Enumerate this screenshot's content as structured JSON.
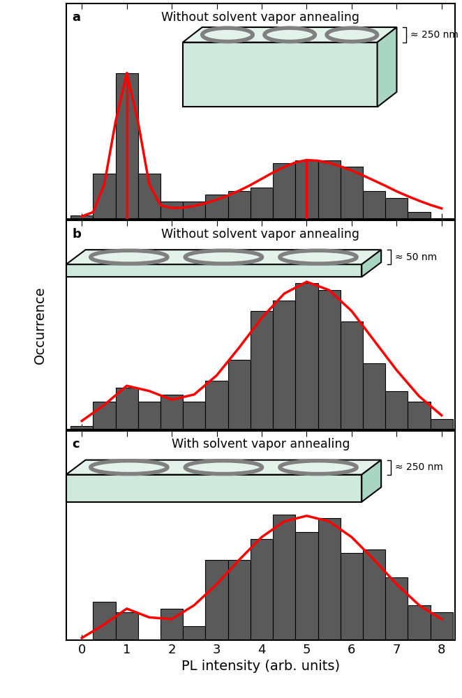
{
  "chart_data": [
    {
      "type": "histogram",
      "panel_label": "a",
      "title": "Without solvent vapor annealing",
      "annotation": "≈ 250 nm",
      "tick_labels": false,
      "bins": [
        -0.25,
        0.25,
        0.75,
        1.25,
        1.75,
        2.25,
        2.75,
        3.25,
        3.75,
        4.25,
        4.75,
        5.25,
        5.75,
        6.25,
        6.75,
        7.25,
        7.75,
        8.25
      ],
      "counts": [
        1,
        13,
        42,
        13,
        5,
        5,
        7,
        8,
        9,
        16,
        17,
        17,
        15,
        8,
        6,
        2,
        0
      ],
      "color": "#5a5a5a",
      "fit": {
        "color": "#ff0000",
        "x": [
          0,
          0.25,
          0.5,
          0.75,
          1,
          1.25,
          1.5,
          1.75,
          2,
          2.25,
          2.5,
          2.75,
          3,
          3.25,
          3.5,
          3.75,
          4,
          4.25,
          4.5,
          4.75,
          5,
          5.25,
          5.5,
          5.75,
          6,
          6.25,
          6.5,
          6.75,
          7,
          7.25,
          7.5,
          7.75,
          8
        ],
        "values": [
          0.8,
          2,
          10,
          28,
          42,
          28,
          10,
          4,
          3.2,
          3.3,
          3.8,
          4.6,
          5.6,
          6.8,
          8.2,
          9.8,
          11.6,
          13.4,
          15,
          16.3,
          17,
          16.8,
          16.2,
          15.2,
          14,
          12.6,
          11.1,
          9.6,
          8,
          6.6,
          5.3,
          4.1,
          3.1
        ]
      },
      "peak_lines": [
        1,
        5
      ],
      "xlim": [
        -0.35,
        8.3
      ],
      "xticks": [
        0,
        1,
        2,
        3,
        4,
        5,
        6,
        7,
        8
      ],
      "ylim": [
        0,
        62
      ]
    },
    {
      "type": "histogram",
      "panel_label": "b",
      "title": "Without solvent vapor annealing",
      "annotation": "≈ 50 nm",
      "tick_labels": false,
      "ylabel": "Occurrence",
      "bins": [
        -0.25,
        0.25,
        0.75,
        1.25,
        1.75,
        2.25,
        2.75,
        3.25,
        3.75,
        4.25,
        4.75,
        5.25,
        5.75,
        6.25,
        6.75,
        7.25,
        7.75,
        8.25
      ],
      "counts": [
        1,
        8,
        12,
        8,
        10,
        8,
        14,
        20,
        34,
        37,
        42,
        40,
        31,
        19,
        11,
        8,
        3
      ],
      "color": "#5a5a5a",
      "fit": {
        "color": "#ff0000",
        "x": [
          0,
          0.5,
          1,
          1.5,
          2,
          2.5,
          3,
          3.5,
          4,
          4.5,
          5,
          5.5,
          6,
          6.5,
          7,
          7.5,
          8
        ],
        "values": [
          2.4,
          7,
          12.5,
          11,
          8.5,
          10,
          15.5,
          23.5,
          32,
          39,
          42.4,
          40,
          34,
          25.5,
          17,
          9.5,
          4
        ]
      },
      "xlim": [
        -0.35,
        8.3
      ],
      "xticks": [
        0,
        1,
        2,
        3,
        4,
        5,
        6,
        7,
        8
      ],
      "ylim": [
        0,
        60
      ]
    },
    {
      "type": "histogram",
      "panel_label": "c",
      "title": "With solvent vapor annealing",
      "annotation": "≈ 250 nm",
      "tick_labels": "x",
      "xlabel": "PL intensity (arb. units)",
      "bins": [
        -0.25,
        0.25,
        0.75,
        1.25,
        1.75,
        2.25,
        2.75,
        3.25,
        3.75,
        4.25,
        4.75,
        5.25,
        5.75,
        6.25,
        6.75,
        7.25,
        7.75,
        8.25
      ],
      "counts": [
        0,
        11,
        8,
        0,
        9,
        4,
        23,
        23,
        29,
        36,
        31,
        35,
        25,
        26,
        18,
        10,
        8
      ],
      "color": "#5a5a5a",
      "fit": {
        "color": "#ff0000",
        "x": [
          0,
          0.5,
          1,
          1.5,
          2,
          2.5,
          3,
          3.5,
          4,
          4.5,
          5,
          5.5,
          6,
          6.5,
          7,
          7.5,
          8
        ],
        "values": [
          0.6,
          4.5,
          9,
          6.5,
          6,
          10,
          16,
          23,
          29.5,
          34,
          35.6,
          34,
          29.5,
          23,
          16,
          10,
          6
        ]
      },
      "xlim": [
        -0.35,
        8.3
      ],
      "xticks": [
        0,
        1,
        2,
        3,
        4,
        5,
        6,
        7,
        8
      ],
      "ylim": [
        0,
        60
      ]
    }
  ]
}
